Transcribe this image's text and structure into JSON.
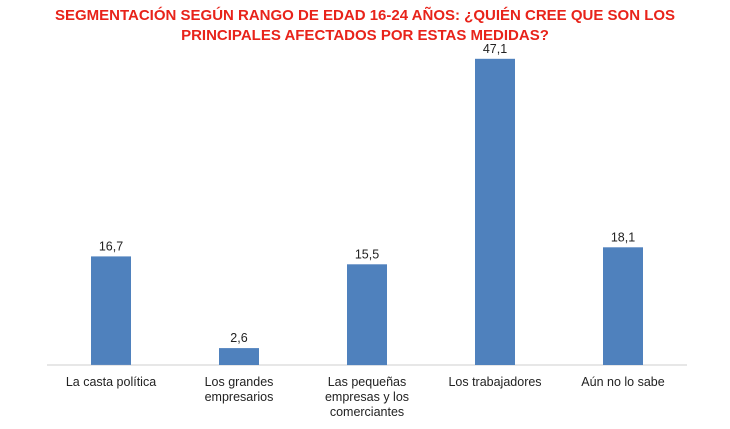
{
  "chart_data": {
    "type": "bar",
    "title": "SEGMENTACIÓN SEGÚN RANGO DE EDAD 16-24 AÑOS: ¿QUIÉN CREE QUE SON LOS\nPRINCIPALES AFECTADOS POR ESTAS MEDIDAS?",
    "categories": [
      "La casta política",
      "Los grandes\nempresarios",
      "Las pequeñas\nempresas y los\ncomerciantes",
      "Los trabajadores",
      "Aún no lo sabe"
    ],
    "values": [
      16.7,
      2.6,
      15.5,
      47.1,
      18.1
    ],
    "value_labels": [
      "16,7",
      "2,6",
      "15,5",
      "47,1",
      "18,1"
    ],
    "xlabel": "",
    "ylabel": "",
    "ylim": [
      0,
      50
    ],
    "grid": false,
    "bar_color": "#4f81bd",
    "title_color": "#e8231a"
  }
}
